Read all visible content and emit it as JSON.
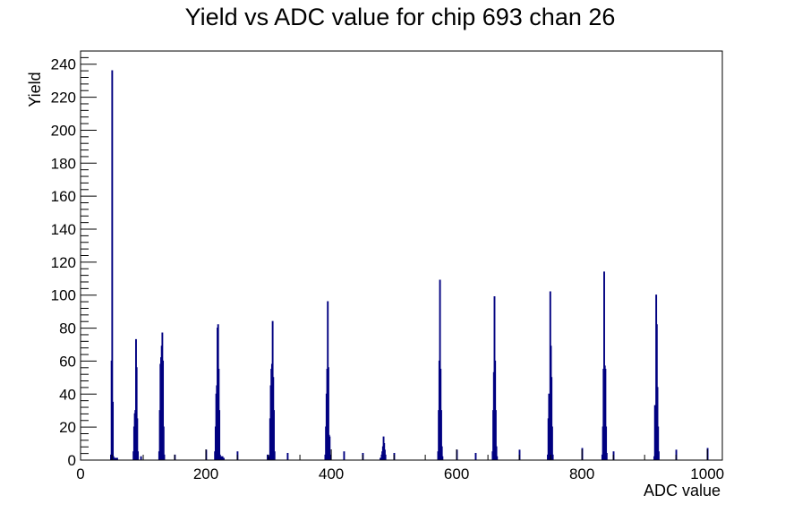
{
  "chart_data": {
    "type": "histogram",
    "title": "Yield vs ADC value for chip 693 chan 26",
    "xlabel": "ADC value",
    "ylabel": "Yield",
    "xlim": [
      0,
      1024
    ],
    "ylim": [
      0,
      248
    ],
    "x_ticks": [
      0,
      200,
      400,
      600,
      800,
      1000
    ],
    "y_ticks": [
      0,
      20,
      40,
      60,
      80,
      100,
      120,
      140,
      160,
      180,
      200,
      220,
      240
    ],
    "grid": false,
    "legend": "none",
    "line_color": "#000080",
    "bins": [
      {
        "x": 48,
        "y": 3
      },
      {
        "x": 49,
        "y": 60
      },
      {
        "x": 50,
        "y": 236
      },
      {
        "x": 51,
        "y": 35
      },
      {
        "x": 52,
        "y": 2
      },
      {
        "x": 54,
        "y": 1
      },
      {
        "x": 56,
        "y": 1
      },
      {
        "x": 58,
        "y": 1
      },
      {
        "x": 84,
        "y": 5
      },
      {
        "x": 85,
        "y": 20
      },
      {
        "x": 86,
        "y": 28
      },
      {
        "x": 87,
        "y": 30
      },
      {
        "x": 88,
        "y": 73
      },
      {
        "x": 89,
        "y": 56
      },
      {
        "x": 90,
        "y": 25
      },
      {
        "x": 91,
        "y": 5
      },
      {
        "x": 96,
        "y": 2
      },
      {
        "x": 125,
        "y": 5
      },
      {
        "x": 126,
        "y": 30
      },
      {
        "x": 127,
        "y": 58
      },
      {
        "x": 128,
        "y": 62
      },
      {
        "x": 129,
        "y": 69
      },
      {
        "x": 130,
        "y": 77
      },
      {
        "x": 131,
        "y": 60
      },
      {
        "x": 132,
        "y": 20
      },
      {
        "x": 133,
        "y": 3
      },
      {
        "x": 150,
        "y": 3
      },
      {
        "x": 200,
        "y": 6
      },
      {
        "x": 226,
        "y": 2
      },
      {
        "x": 228,
        "y": 1
      },
      {
        "x": 214,
        "y": 5
      },
      {
        "x": 215,
        "y": 20
      },
      {
        "x": 216,
        "y": 40
      },
      {
        "x": 217,
        "y": 45
      },
      {
        "x": 218,
        "y": 80
      },
      {
        "x": 219,
        "y": 82
      },
      {
        "x": 220,
        "y": 55
      },
      {
        "x": 221,
        "y": 30
      },
      {
        "x": 222,
        "y": 3
      },
      {
        "x": 224,
        "y": 2
      },
      {
        "x": 250,
        "y": 5
      },
      {
        "x": 298,
        "y": 3
      },
      {
        "x": 300,
        "y": 2
      },
      {
        "x": 302,
        "y": 25
      },
      {
        "x": 303,
        "y": 45
      },
      {
        "x": 304,
        "y": 55
      },
      {
        "x": 305,
        "y": 58
      },
      {
        "x": 306,
        "y": 84
      },
      {
        "x": 307,
        "y": 50
      },
      {
        "x": 308,
        "y": 30
      },
      {
        "x": 309,
        "y": 5
      },
      {
        "x": 330,
        "y": 4
      },
      {
        "x": 390,
        "y": 3
      },
      {
        "x": 391,
        "y": 20
      },
      {
        "x": 392,
        "y": 40
      },
      {
        "x": 393,
        "y": 55
      },
      {
        "x": 394,
        "y": 96
      },
      {
        "x": 395,
        "y": 56
      },
      {
        "x": 396,
        "y": 15
      },
      {
        "x": 397,
        "y": 14
      },
      {
        "x": 398,
        "y": 3
      },
      {
        "x": 420,
        "y": 5
      },
      {
        "x": 450,
        "y": 4
      },
      {
        "x": 478,
        "y": 1
      },
      {
        "x": 480,
        "y": 3
      },
      {
        "x": 481,
        "y": 5
      },
      {
        "x": 482,
        "y": 8
      },
      {
        "x": 483,
        "y": 14
      },
      {
        "x": 484,
        "y": 10
      },
      {
        "x": 485,
        "y": 6
      },
      {
        "x": 486,
        "y": 3
      },
      {
        "x": 500,
        "y": 4
      },
      {
        "x": 570,
        "y": 5
      },
      {
        "x": 571,
        "y": 30
      },
      {
        "x": 572,
        "y": 60
      },
      {
        "x": 573,
        "y": 109
      },
      {
        "x": 574,
        "y": 55
      },
      {
        "x": 575,
        "y": 30
      },
      {
        "x": 576,
        "y": 8
      },
      {
        "x": 577,
        "y": 2
      },
      {
        "x": 600,
        "y": 6
      },
      {
        "x": 630,
        "y": 4
      },
      {
        "x": 657,
        "y": 5
      },
      {
        "x": 658,
        "y": 30
      },
      {
        "x": 659,
        "y": 53
      },
      {
        "x": 660,
        "y": 99
      },
      {
        "x": 661,
        "y": 60
      },
      {
        "x": 662,
        "y": 30
      },
      {
        "x": 663,
        "y": 8
      },
      {
        "x": 664,
        "y": 2
      },
      {
        "x": 700,
        "y": 6
      },
      {
        "x": 745,
        "y": 3
      },
      {
        "x": 746,
        "y": 25
      },
      {
        "x": 747,
        "y": 40
      },
      {
        "x": 748,
        "y": 24
      },
      {
        "x": 749,
        "y": 102
      },
      {
        "x": 750,
        "y": 69
      },
      {
        "x": 751,
        "y": 50
      },
      {
        "x": 752,
        "y": 20
      },
      {
        "x": 753,
        "y": 3
      },
      {
        "x": 800,
        "y": 7
      },
      {
        "x": 832,
        "y": 3
      },
      {
        "x": 833,
        "y": 20
      },
      {
        "x": 834,
        "y": 55
      },
      {
        "x": 835,
        "y": 114
      },
      {
        "x": 836,
        "y": 57
      },
      {
        "x": 837,
        "y": 55
      },
      {
        "x": 838,
        "y": 20
      },
      {
        "x": 839,
        "y": 4
      },
      {
        "x": 850,
        "y": 5
      },
      {
        "x": 915,
        "y": 2
      },
      {
        "x": 916,
        "y": 33
      },
      {
        "x": 917,
        "y": 30
      },
      {
        "x": 918,
        "y": 100
      },
      {
        "x": 919,
        "y": 82
      },
      {
        "x": 920,
        "y": 44
      },
      {
        "x": 921,
        "y": 20
      },
      {
        "x": 922,
        "y": 5
      },
      {
        "x": 950,
        "y": 6
      },
      {
        "x": 1000,
        "y": 7
      }
    ]
  }
}
